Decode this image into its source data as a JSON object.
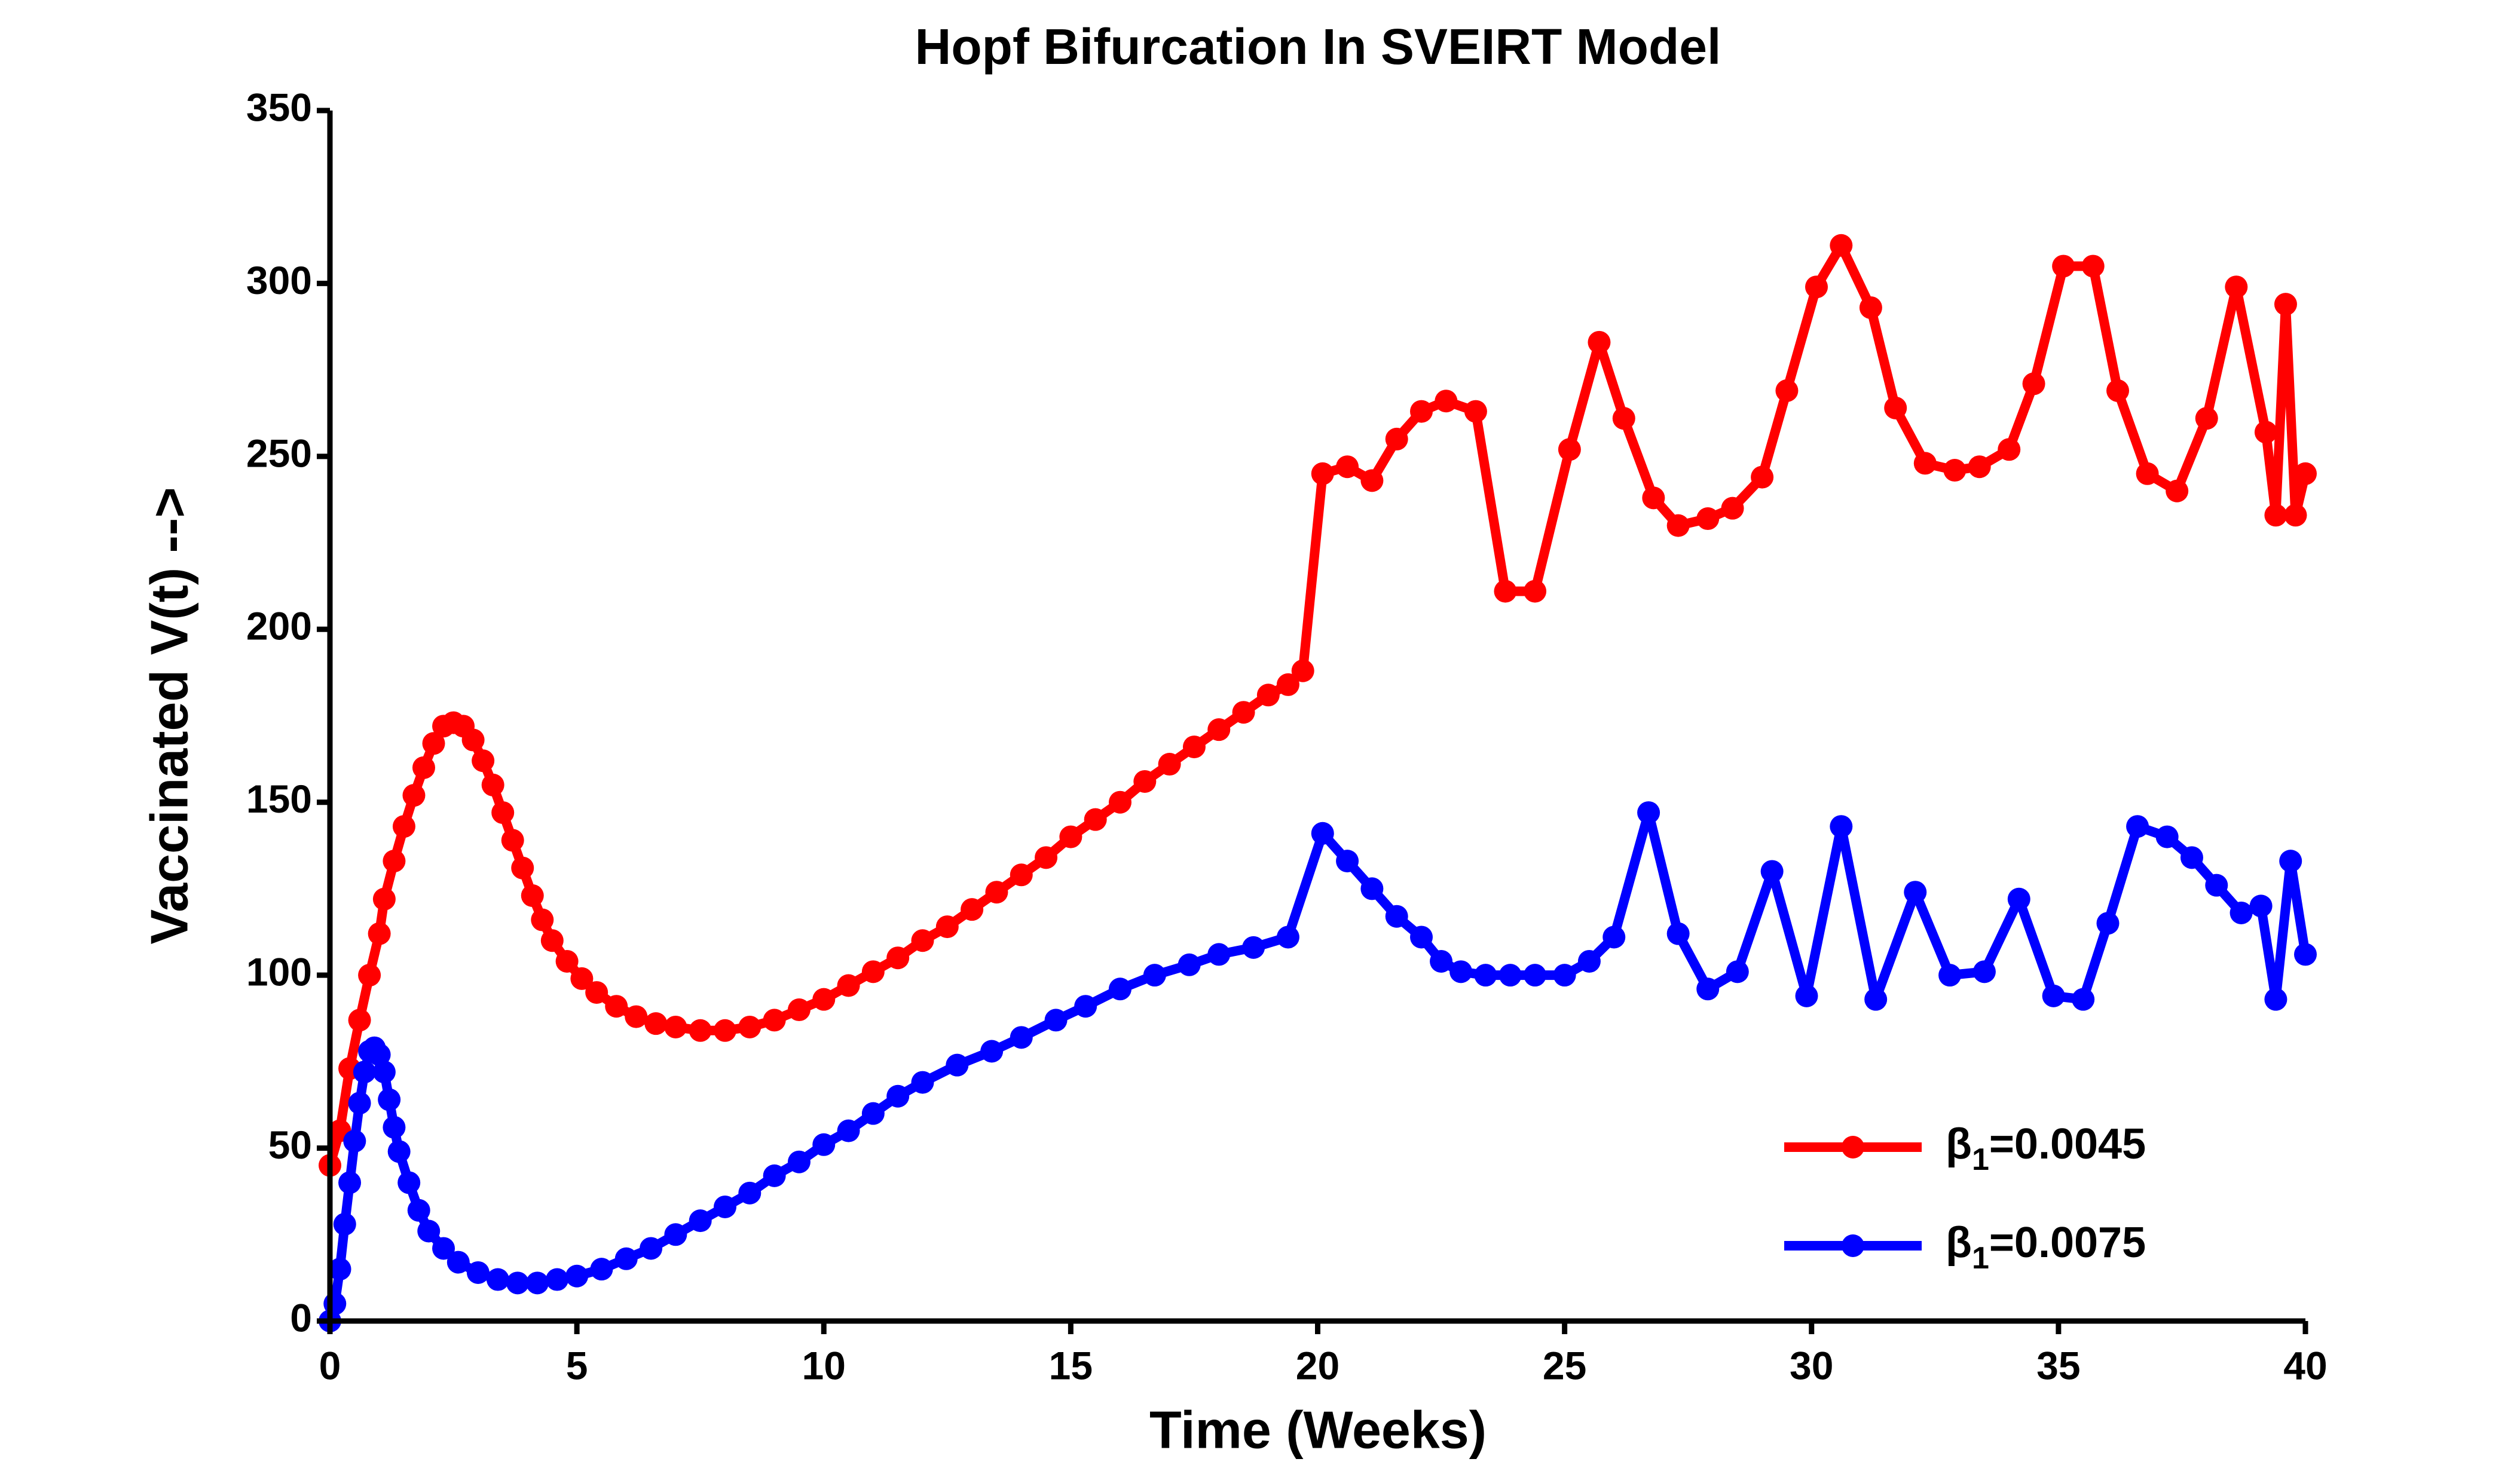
{
  "chart_data": {
    "type": "line",
    "title": "Hopf Bifurcation In SVEIRT Model",
    "xlabel": "Time (Weeks)",
    "ylabel": "Vaccinated V(t)  -->",
    "xlim": [
      0,
      40
    ],
    "xticks": [
      0,
      5,
      10,
      15,
      20,
      25,
      30,
      35,
      40
    ],
    "ylim": [
      0,
      350
    ],
    "yticks": [
      0,
      50,
      100,
      150,
      200,
      250,
      300,
      350
    ],
    "legend": "lower right",
    "series": [
      {
        "name": "β1=0.0045",
        "color": "#ff0000",
        "x": [
          0,
          0.2,
          0.4,
          0.6,
          0.8,
          1.0,
          1.1,
          1.3,
          1.5,
          1.7,
          1.9,
          2.1,
          2.3,
          2.5,
          2.7,
          2.9,
          3.1,
          3.3,
          3.5,
          3.7,
          3.9,
          4.1,
          4.3,
          4.5,
          4.8,
          5.1,
          5.4,
          5.8,
          6.2,
          6.6,
          7.0,
          7.5,
          8.0,
          8.5,
          9.0,
          9.5,
          10,
          10.5,
          11,
          11.5,
          12,
          12.5,
          13,
          13.5,
          14,
          14.5,
          15,
          15.5,
          16,
          16.5,
          17,
          17.5,
          18,
          18.5,
          19,
          19.4,
          19.7,
          20.1,
          20.6,
          21.1,
          21.6,
          22.1,
          22.6,
          23.2,
          23.8,
          24.4,
          25.1,
          25.7,
          26.2,
          26.8,
          27.3,
          27.9,
          28.4,
          29.0,
          29.5,
          30.1,
          30.6,
          31.2,
          31.7,
          32.3,
          32.9,
          33.4,
          34.0,
          34.5,
          35.1,
          35.7,
          36.2,
          36.8,
          37.4,
          38.0,
          38.6,
          39.2,
          39.4,
          39.6,
          39.8,
          40.0
        ],
        "values": [
          45,
          55,
          73,
          87,
          100,
          112,
          122,
          133,
          143,
          152,
          160,
          167,
          172,
          173,
          172,
          168,
          162,
          155,
          147,
          139,
          131,
          123,
          116,
          110,
          104,
          99,
          95,
          91,
          88,
          86,
          85,
          84,
          84,
          85,
          87,
          90,
          93,
          97,
          101,
          105,
          110,
          114,
          119,
          124,
          129,
          134,
          140,
          145,
          150,
          156,
          161,
          166,
          171,
          176,
          181,
          184,
          188,
          245,
          247,
          243,
          255,
          263,
          266,
          263,
          211,
          211,
          252,
          283,
          261,
          238,
          230,
          232,
          235,
          244,
          269,
          299,
          311,
          293,
          264,
          248,
          246,
          247,
          252,
          271,
          305,
          305,
          269,
          245,
          240,
          261,
          299,
          257,
          233,
          294,
          233,
          245
        ]
      },
      {
        "name": "β1=0.0075",
        "color": "#0000ff",
        "x": [
          0,
          0.1,
          0.2,
          0.3,
          0.4,
          0.5,
          0.6,
          0.7,
          0.8,
          0.9,
          1.0,
          1.1,
          1.2,
          1.3,
          1.4,
          1.6,
          1.8,
          2.0,
          2.3,
          2.6,
          3.0,
          3.4,
          3.8,
          4.2,
          4.6,
          5.0,
          5.5,
          6.0,
          6.5,
          7,
          7.5,
          8,
          8.5,
          9,
          9.5,
          10,
          10.5,
          11,
          11.5,
          12,
          12.7,
          13.4,
          14,
          14.7,
          15.3,
          16,
          16.7,
          17.4,
          18,
          18.7,
          19.4,
          20.1,
          20.6,
          21.1,
          21.6,
          22.1,
          22.5,
          22.9,
          23.4,
          23.9,
          24.4,
          25.0,
          25.5,
          26.0,
          26.7,
          27.3,
          27.9,
          28.5,
          29.2,
          29.9,
          30.6,
          31.3,
          32.1,
          32.8,
          33.5,
          34.2,
          34.9,
          35.5,
          36.0,
          36.6,
          37.2,
          37.7,
          38.2,
          38.7,
          39.1,
          39.4,
          39.7,
          40.0
        ],
        "values": [
          0,
          5,
          15,
          28,
          40,
          52,
          63,
          72,
          78,
          79,
          77,
          72,
          64,
          56,
          49,
          40,
          32,
          26,
          21,
          17,
          14,
          12,
          11,
          11,
          12,
          13,
          15,
          18,
          21,
          25,
          29,
          33,
          37,
          42,
          46,
          51,
          55,
          60,
          65,
          69,
          74,
          78,
          82,
          87,
          91,
          96,
          100,
          103,
          106,
          108,
          111,
          141,
          133,
          125,
          117,
          111,
          104,
          101,
          100,
          100,
          100,
          100,
          104,
          111,
          147,
          112,
          96,
          101,
          130,
          94,
          143,
          93,
          124,
          100,
          101,
          122,
          94,
          93,
          115,
          143,
          140,
          134,
          126,
          118,
          120,
          93,
          133,
          106
        ]
      }
    ]
  }
}
